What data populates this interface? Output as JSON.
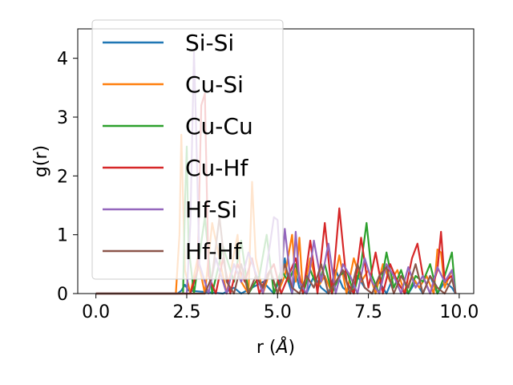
{
  "chart_data": {
    "type": "line",
    "xlabel": "r (Å)",
    "xlabel_parts": {
      "text": "r (",
      "unit": "Å",
      "close": ")"
    },
    "ylabel": "g(r)",
    "xlim": [
      -0.5,
      10.4
    ],
    "ylim": [
      0,
      4.5
    ],
    "xticks": [
      0.0,
      2.5,
      5.0,
      7.5,
      10.0
    ],
    "xtick_labels": [
      "0.0",
      "2.5",
      "5.0",
      "7.5",
      "10.0"
    ],
    "yticks": [
      0,
      1,
      2,
      3,
      4
    ],
    "ytick_labels": [
      "0",
      "1",
      "2",
      "3",
      "4"
    ],
    "grid": false,
    "legend": "top-left",
    "series": [
      {
        "name": "Si-Si",
        "color": "#1f77b4",
        "x": [
          0,
          1,
          2,
          2.25,
          2.35,
          2.45,
          2.55,
          3.5,
          3.8,
          4.0,
          4.6,
          4.9,
          5.1,
          5.2,
          5.3,
          5.4,
          5.5,
          5.6,
          5.8,
          6.0,
          6.2,
          6.4,
          6.6,
          6.8,
          7.0,
          7.2,
          7.4,
          7.6,
          7.8,
          8.0,
          8.2,
          8.4,
          8.6,
          8.8,
          9.0,
          9.2,
          9.4,
          9.6,
          9.8,
          9.9
        ],
        "y": [
          0,
          0,
          0,
          0,
          0.05,
          0.15,
          0.05,
          0,
          0.1,
          0,
          0.2,
          0,
          0.3,
          0.6,
          0.2,
          0,
          0.35,
          0.1,
          0,
          0.3,
          0.1,
          0,
          0.4,
          0.1,
          0,
          0.3,
          0.1,
          0,
          0.2,
          0,
          0.3,
          0.1,
          0,
          0.2,
          0,
          0.3,
          0,
          0.2,
          0.1,
          0
        ]
      },
      {
        "name": "Cu-Si",
        "color": "#ff7f0e",
        "x": [
          0,
          1,
          2,
          2.2,
          2.3,
          2.35,
          2.45,
          2.6,
          2.8,
          3.0,
          3.2,
          3.6,
          3.9,
          4.0,
          4.2,
          4.3,
          4.4,
          4.6,
          4.8,
          5.0,
          5.2,
          5.4,
          5.5,
          5.6,
          5.7,
          5.9,
          6.1,
          6.3,
          6.5,
          6.7,
          6.9,
          7.1,
          7.3,
          7.5,
          7.7,
          7.9,
          8.1,
          8.3,
          8.5,
          8.7,
          8.9,
          9.1,
          9.3,
          9.4,
          9.5,
          9.6,
          9.8,
          9.9
        ],
        "y": [
          0,
          0,
          0,
          0,
          1.0,
          2.7,
          0.4,
          0,
          0.6,
          0,
          1.2,
          0,
          1.0,
          0.2,
          0,
          1.9,
          0.6,
          0,
          0.4,
          0,
          0.3,
          1.0,
          0.2,
          0.95,
          0,
          0.6,
          0.1,
          0.3,
          0,
          0.65,
          0,
          0.6,
          0.2,
          0.4,
          0,
          0.5,
          0.2,
          0.4,
          0,
          0.3,
          0.1,
          0.3,
          0,
          0.75,
          0.7,
          0.1,
          0.4,
          0
        ]
      },
      {
        "name": "Cu-Cu",
        "color": "#2ca02c",
        "x": [
          0,
          1,
          2,
          2.4,
          2.45,
          2.5,
          2.55,
          2.7,
          3.0,
          3.2,
          3.5,
          3.8,
          4.0,
          4.2,
          4.5,
          4.7,
          4.9,
          5.1,
          5.3,
          5.5,
          5.7,
          5.9,
          6.1,
          6.3,
          6.5,
          6.7,
          6.9,
          7.1,
          7.3,
          7.45,
          7.6,
          7.8,
          8.0,
          8.2,
          8.4,
          8.6,
          8.8,
          9.0,
          9.2,
          9.4,
          9.6,
          9.8,
          9.9
        ],
        "y": [
          0,
          0,
          0,
          0,
          1.5,
          2.5,
          0.8,
          0,
          1.3,
          0,
          0.8,
          0.2,
          0.9,
          0,
          0.3,
          1.0,
          0,
          0.4,
          0.2,
          0.5,
          0,
          0.4,
          0.1,
          0.5,
          0,
          0.3,
          0.4,
          0,
          0.5,
          1.2,
          0.3,
          0,
          0.7,
          0.1,
          0.4,
          0,
          0.3,
          0.2,
          0.5,
          0,
          0.3,
          0.7,
          0
        ]
      },
      {
        "name": "Cu-Hf",
        "color": "#d62728",
        "x": [
          0,
          1,
          2,
          2.6,
          2.8,
          2.9,
          3.0,
          3.1,
          3.3,
          3.5,
          3.7,
          3.9,
          4.1,
          4.3,
          4.5,
          4.7,
          4.9,
          5.1,
          5.3,
          5.5,
          5.7,
          5.9,
          6.1,
          6.3,
          6.5,
          6.7,
          6.9,
          7.1,
          7.3,
          7.5,
          7.7,
          7.9,
          8.1,
          8.3,
          8.5,
          8.7,
          8.85,
          9.0,
          9.2,
          9.4,
          9.5,
          9.6,
          9.8,
          9.9
        ],
        "y": [
          0,
          0,
          0,
          0,
          0.4,
          3.2,
          3.4,
          0.3,
          0,
          0.6,
          0,
          0.5,
          0.2,
          0.6,
          0,
          0.3,
          0.5,
          0,
          0.3,
          0.6,
          0,
          0.9,
          0,
          1.2,
          0,
          1.45,
          0.2,
          0,
          0.95,
          0.1,
          0.7,
          0,
          0.5,
          0.2,
          0,
          0.6,
          0.85,
          0.3,
          0,
          0.4,
          1.05,
          0.2,
          0.3,
          0
        ]
      },
      {
        "name": "Hf-Si",
        "color": "#9467bd",
        "x": [
          0,
          1,
          2,
          2.5,
          2.6,
          2.7,
          2.75,
          2.85,
          3.1,
          3.3,
          3.6,
          3.8,
          4.0,
          4.2,
          4.6,
          4.9,
          5.0,
          5.1,
          5.2,
          5.4,
          5.5,
          5.6,
          5.8,
          6.0,
          6.2,
          6.4,
          6.6,
          6.8,
          7.0,
          7.2,
          7.4,
          7.6,
          7.8,
          8.0,
          8.2,
          8.4,
          8.6,
          8.8,
          9.0,
          9.2,
          9.4,
          9.6,
          9.8,
          9.9
        ],
        "y": [
          0,
          0,
          0,
          0,
          1.2,
          4.1,
          3.0,
          0.5,
          0,
          0.6,
          0,
          0.5,
          0.2,
          0.7,
          0,
          1.3,
          1.25,
          0.2,
          1.1,
          0,
          1.05,
          0.2,
          0,
          0.9,
          0.2,
          0.85,
          0,
          0.5,
          0.3,
          0,
          0.6,
          0.2,
          0,
          0.5,
          0.3,
          0,
          0.45,
          0.1,
          0.3,
          0,
          0.45,
          0.2,
          0.4,
          0
        ]
      },
      {
        "name": "Hf-Hf",
        "color": "#8c564b",
        "x": [
          0,
          1,
          2,
          3.0,
          3.2,
          3.4,
          3.6,
          3.8,
          4.0,
          4.2,
          4.4,
          4.6,
          4.8,
          5.0,
          5.2,
          5.4,
          5.6,
          5.8,
          6.0,
          6.2,
          6.4,
          6.6,
          6.8,
          7.0,
          7.2,
          7.4,
          7.6,
          7.8,
          8.0,
          8.2,
          8.4,
          8.6,
          8.8,
          9.0,
          9.2,
          9.4,
          9.6,
          9.8,
          9.9
        ],
        "y": [
          0,
          0,
          0,
          0,
          0.3,
          1.3,
          0.2,
          0,
          0.5,
          0,
          0.3,
          0.1,
          0.4,
          0,
          0.5,
          0.1,
          0,
          0.3,
          0.1,
          0.5,
          0,
          0.2,
          0.4,
          0,
          0.5,
          0.1,
          0,
          0.3,
          0.45,
          0,
          0.3,
          0.1,
          0.5,
          0,
          0.3,
          0.1,
          0,
          0.25,
          0
        ]
      }
    ]
  }
}
